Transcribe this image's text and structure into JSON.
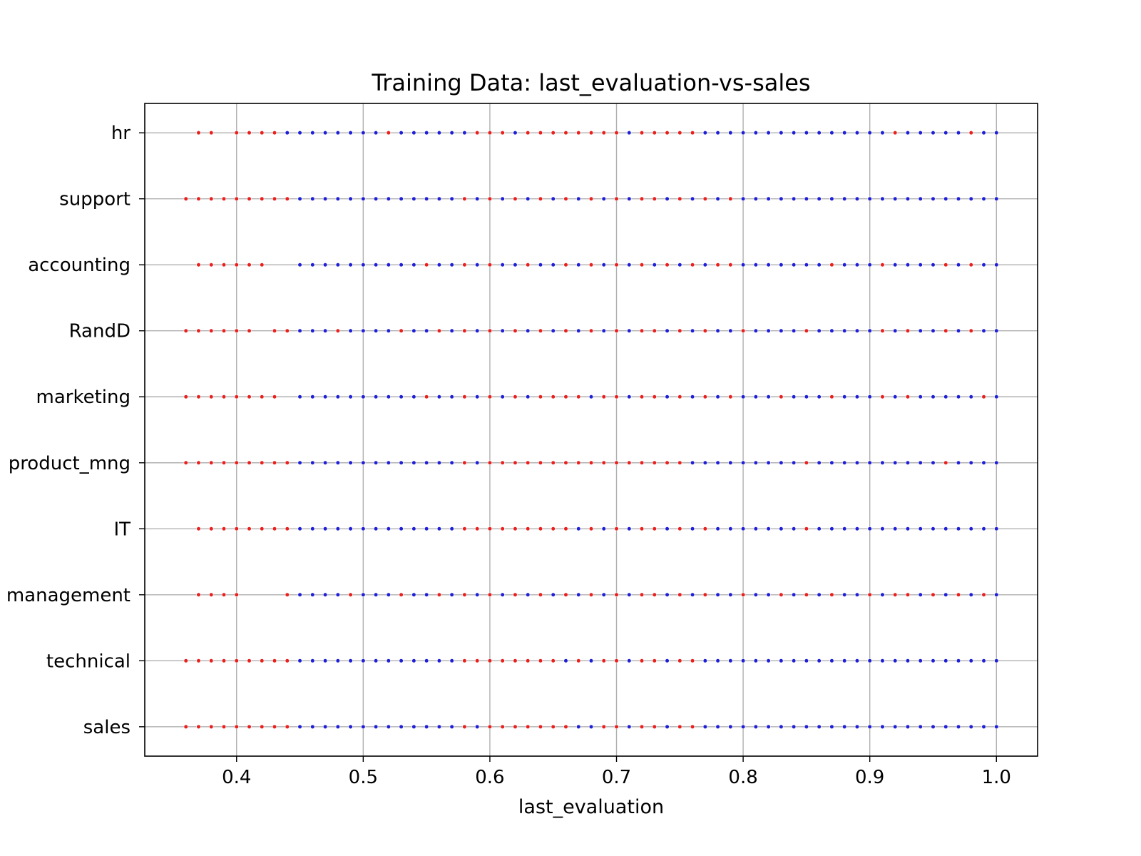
{
  "chart_data": {
    "type": "scatter",
    "title": "Training Data: last_evaluation-vs-sales",
    "xlabel": "last_evaluation",
    "ylabel": "",
    "xlim": [
      0.3275,
      1.0325
    ],
    "xticks": [
      0.4,
      0.5,
      0.6,
      0.7,
      0.8,
      0.9,
      1.0
    ],
    "xtick_labels": [
      "0.4",
      "0.5",
      "0.6",
      "0.7",
      "0.8",
      "0.9",
      "1.0"
    ],
    "categories": [
      "sales",
      "technical",
      "management",
      "IT",
      "product_mng",
      "marketing",
      "RandD",
      "accounting",
      "support",
      "hr"
    ],
    "grid": true,
    "colors": {
      "left": "#e8201e",
      "stayed": "#1f1fd6"
    },
    "series": [
      {
        "name": "",
        "points": [
          {
            "category": "sales",
            "red_values": [
              0.36,
              0.37,
              0.38,
              0.39,
              0.4,
              0.41,
              0.42,
              0.43,
              0.44,
              0.58,
              0.6,
              0.61,
              0.62,
              0.63,
              0.64,
              0.65,
              0.66,
              0.69,
              0.7,
              0.72,
              0.73,
              0.75,
              0.76
            ],
            "blue_values": [
              0.45,
              0.46,
              0.47,
              0.48,
              0.49,
              0.5,
              0.51,
              0.52,
              0.53,
              0.54,
              0.55,
              0.56,
              0.57,
              0.59,
              0.67,
              0.68,
              0.71,
              0.74,
              0.77,
              0.78,
              0.79,
              0.8,
              0.81,
              0.82,
              0.83,
              0.84,
              0.85,
              0.86,
              0.87,
              0.88,
              0.89,
              0.9,
              0.91,
              0.92,
              0.93,
              0.94,
              0.95,
              0.96,
              0.97,
              0.98,
              0.99,
              1.0
            ]
          },
          {
            "category": "technical",
            "red_values": [
              0.36,
              0.37,
              0.38,
              0.39,
              0.4,
              0.41,
              0.42,
              0.43,
              0.44,
              0.58,
              0.59,
              0.6,
              0.61,
              0.62,
              0.63,
              0.64,
              0.65,
              0.67,
              0.69,
              0.7,
              0.72,
              0.73,
              0.75,
              0.76
            ],
            "blue_values": [
              0.45,
              0.46,
              0.47,
              0.48,
              0.49,
              0.5,
              0.51,
              0.52,
              0.53,
              0.54,
              0.55,
              0.56,
              0.57,
              0.66,
              0.68,
              0.71,
              0.74,
              0.77,
              0.78,
              0.79,
              0.8,
              0.81,
              0.82,
              0.83,
              0.84,
              0.85,
              0.86,
              0.87,
              0.88,
              0.89,
              0.9,
              0.91,
              0.92,
              0.93,
              0.94,
              0.95,
              0.96,
              0.97,
              0.98,
              0.99,
              1.0
            ]
          },
          {
            "category": "management",
            "red_values": [
              0.37,
              0.38,
              0.39,
              0.4,
              0.44,
              0.49,
              0.53,
              0.56,
              0.58,
              0.6,
              0.62,
              0.64,
              0.66,
              0.68,
              0.7,
              0.72,
              0.73,
              0.75,
              0.77,
              0.8,
              0.83,
              0.85,
              0.87,
              0.9,
              0.92,
              0.93,
              0.95,
              0.97,
              0.99
            ],
            "blue_values": [
              0.45,
              0.46,
              0.47,
              0.48,
              0.5,
              0.51,
              0.52,
              0.54,
              0.55,
              0.57,
              0.59,
              0.61,
              0.63,
              0.65,
              0.67,
              0.69,
              0.71,
              0.74,
              0.76,
              0.78,
              0.79,
              0.81,
              0.82,
              0.84,
              0.86,
              0.88,
              0.89,
              0.91,
              0.94,
              0.96,
              0.98,
              1.0
            ]
          },
          {
            "category": "IT",
            "red_values": [
              0.37,
              0.38,
              0.39,
              0.4,
              0.41,
              0.42,
              0.43,
              0.44,
              0.58,
              0.59,
              0.6,
              0.61,
              0.62,
              0.63,
              0.64,
              0.65,
              0.66,
              0.68,
              0.7,
              0.72,
              0.73,
              0.75,
              0.77,
              0.85
            ],
            "blue_values": [
              0.45,
              0.46,
              0.47,
              0.48,
              0.49,
              0.5,
              0.51,
              0.52,
              0.53,
              0.54,
              0.55,
              0.56,
              0.57,
              0.67,
              0.69,
              0.71,
              0.74,
              0.76,
              0.78,
              0.79,
              0.8,
              0.81,
              0.82,
              0.83,
              0.84,
              0.86,
              0.87,
              0.88,
              0.89,
              0.9,
              0.91,
              0.92,
              0.93,
              0.94,
              0.95,
              0.96,
              0.97,
              0.98,
              0.99,
              1.0
            ]
          },
          {
            "category": "product_mng",
            "red_values": [
              0.36,
              0.37,
              0.38,
              0.39,
              0.4,
              0.41,
              0.42,
              0.43,
              0.44,
              0.58,
              0.6,
              0.61,
              0.62,
              0.63,
              0.64,
              0.65,
              0.66,
              0.67,
              0.68,
              0.69,
              0.7,
              0.71,
              0.72,
              0.73,
              0.74,
              0.75,
              0.85,
              0.96
            ],
            "blue_values": [
              0.45,
              0.46,
              0.47,
              0.48,
              0.49,
              0.5,
              0.51,
              0.52,
              0.53,
              0.54,
              0.55,
              0.56,
              0.57,
              0.59,
              0.76,
              0.77,
              0.78,
              0.79,
              0.8,
              0.81,
              0.82,
              0.83,
              0.84,
              0.86,
              0.87,
              0.88,
              0.89,
              0.9,
              0.91,
              0.92,
              0.93,
              0.94,
              0.95,
              0.97,
              0.98,
              0.99,
              1.0
            ]
          },
          {
            "category": "marketing",
            "red_values": [
              0.36,
              0.37,
              0.38,
              0.39,
              0.4,
              0.41,
              0.42,
              0.43,
              0.55,
              0.58,
              0.6,
              0.62,
              0.64,
              0.65,
              0.66,
              0.67,
              0.69,
              0.7,
              0.72,
              0.73,
              0.75,
              0.77,
              0.79,
              0.83,
              0.87,
              0.91,
              0.93,
              0.99
            ],
            "blue_values": [
              0.45,
              0.46,
              0.47,
              0.48,
              0.49,
              0.5,
              0.51,
              0.52,
              0.53,
              0.54,
              0.56,
              0.57,
              0.59,
              0.61,
              0.63,
              0.68,
              0.71,
              0.74,
              0.76,
              0.78,
              0.8,
              0.81,
              0.82,
              0.84,
              0.85,
              0.86,
              0.88,
              0.89,
              0.9,
              0.92,
              0.94,
              0.95,
              0.96,
              0.97,
              0.98,
              1.0
            ]
          },
          {
            "category": "RandD",
            "red_values": [
              0.36,
              0.37,
              0.38,
              0.39,
              0.4,
              0.41,
              0.43,
              0.44,
              0.48,
              0.53,
              0.56,
              0.58,
              0.6,
              0.62,
              0.64,
              0.66,
              0.68,
              0.7,
              0.72,
              0.73,
              0.75,
              0.77,
              0.8,
              0.85,
              0.91,
              0.93,
              0.96,
              0.98
            ],
            "blue_values": [
              0.45,
              0.46,
              0.47,
              0.49,
              0.5,
              0.51,
              0.52,
              0.54,
              0.55,
              0.57,
              0.59,
              0.61,
              0.63,
              0.65,
              0.67,
              0.69,
              0.71,
              0.74,
              0.76,
              0.78,
              0.79,
              0.81,
              0.82,
              0.83,
              0.84,
              0.86,
              0.87,
              0.88,
              0.89,
              0.9,
              0.92,
              0.94,
              0.95,
              0.97,
              0.99,
              1.0
            ]
          },
          {
            "category": "accounting",
            "red_values": [
              0.37,
              0.38,
              0.39,
              0.4,
              0.41,
              0.42,
              0.55,
              0.58,
              0.6,
              0.63,
              0.66,
              0.68,
              0.7,
              0.72,
              0.74,
              0.76,
              0.78,
              0.79,
              0.87,
              0.91,
              0.96,
              0.98
            ],
            "blue_values": [
              0.45,
              0.46,
              0.47,
              0.48,
              0.49,
              0.5,
              0.51,
              0.52,
              0.53,
              0.54,
              0.56,
              0.57,
              0.59,
              0.61,
              0.62,
              0.64,
              0.65,
              0.67,
              0.69,
              0.71,
              0.73,
              0.75,
              0.77,
              0.8,
              0.81,
              0.82,
              0.83,
              0.84,
              0.85,
              0.86,
              0.88,
              0.89,
              0.9,
              0.92,
              0.93,
              0.94,
              0.95,
              0.97,
              0.99,
              1.0
            ]
          },
          {
            "category": "support",
            "red_values": [
              0.36,
              0.37,
              0.38,
              0.39,
              0.4,
              0.41,
              0.42,
              0.43,
              0.44,
              0.58,
              0.6,
              0.62,
              0.64,
              0.66,
              0.68,
              0.7,
              0.72,
              0.73,
              0.75,
              0.77,
              0.79
            ],
            "blue_values": [
              0.45,
              0.46,
              0.47,
              0.48,
              0.49,
              0.5,
              0.51,
              0.52,
              0.53,
              0.54,
              0.55,
              0.56,
              0.57,
              0.59,
              0.61,
              0.63,
              0.65,
              0.67,
              0.69,
              0.71,
              0.74,
              0.76,
              0.78,
              0.8,
              0.81,
              0.82,
              0.83,
              0.84,
              0.85,
              0.86,
              0.87,
              0.88,
              0.89,
              0.9,
              0.91,
              0.92,
              0.93,
              0.94,
              0.95,
              0.96,
              0.97,
              0.98,
              0.99,
              1.0
            ]
          },
          {
            "category": "hr",
            "red_values": [
              0.37,
              0.38,
              0.4,
              0.41,
              0.42,
              0.43,
              0.52,
              0.59,
              0.6,
              0.61,
              0.63,
              0.64,
              0.65,
              0.66,
              0.67,
              0.68,
              0.69,
              0.7,
              0.72,
              0.73,
              0.74,
              0.75,
              0.76,
              0.92,
              0.98
            ],
            "blue_values": [
              0.44,
              0.45,
              0.46,
              0.47,
              0.48,
              0.49,
              0.5,
              0.51,
              0.53,
              0.54,
              0.55,
              0.56,
              0.57,
              0.58,
              0.62,
              0.71,
              0.77,
              0.78,
              0.79,
              0.8,
              0.81,
              0.82,
              0.83,
              0.84,
              0.85,
              0.86,
              0.87,
              0.88,
              0.89,
              0.9,
              0.91,
              0.93,
              0.94,
              0.95,
              0.96,
              0.97,
              0.99,
              1.0
            ]
          }
        ]
      }
    ]
  }
}
